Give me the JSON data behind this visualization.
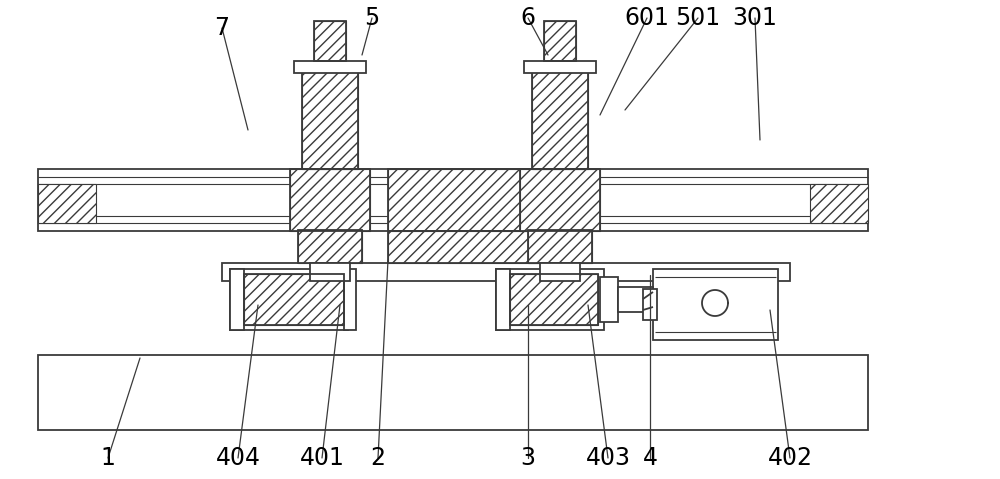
{
  "bg_color": "#ffffff",
  "line_color": "#3a3a3a",
  "lw_main": 1.3,
  "lw_thin": 0.8,
  "figsize": [
    10.0,
    4.79
  ],
  "dpi": 100,
  "annotations": [
    [
      "7",
      222,
      28,
      248,
      130
    ],
    [
      "5",
      372,
      18,
      362,
      55
    ],
    [
      "6",
      528,
      18,
      548,
      55
    ],
    [
      "601",
      647,
      18,
      600,
      115
    ],
    [
      "501",
      698,
      18,
      625,
      110
    ],
    [
      "301",
      755,
      18,
      760,
      140
    ],
    [
      "1",
      108,
      458,
      140,
      358
    ],
    [
      "404",
      238,
      458,
      258,
      305
    ],
    [
      "401",
      322,
      458,
      340,
      305
    ],
    [
      "2",
      378,
      458,
      388,
      260
    ],
    [
      "3",
      528,
      458,
      528,
      305
    ],
    [
      "403",
      608,
      458,
      588,
      305
    ],
    [
      "4",
      650,
      458,
      650,
      275
    ],
    [
      "402",
      790,
      458,
      770,
      310
    ]
  ],
  "label_fontsize": 17
}
